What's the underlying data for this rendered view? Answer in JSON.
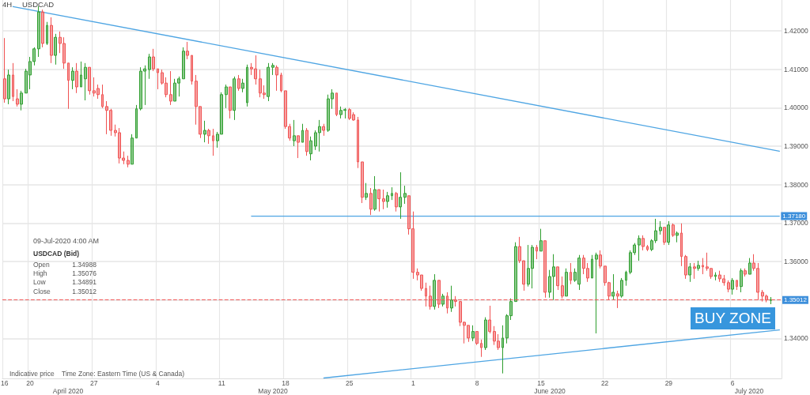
{
  "chart_data": {
    "type": "candlestick",
    "title": "4H",
    "subtitle": "USDCAD",
    "categories": [
      "16",
      null,
      null,
      null,
      null,
      null,
      "20",
      null,
      null,
      null,
      null,
      null,
      null,
      null,
      null,
      null,
      null,
      null,
      null,
      null,
      null,
      "27",
      null,
      null,
      null,
      null,
      null,
      null,
      null,
      null,
      null,
      null,
      null,
      null,
      null,
      null,
      "4",
      null,
      null,
      null,
      null,
      null,
      null,
      null,
      null,
      null,
      null,
      null,
      null,
      null,
      null,
      "11",
      null,
      null,
      null,
      null,
      null,
      null,
      null,
      null,
      null,
      null,
      null,
      null,
      null,
      null,
      "18",
      null,
      null,
      null,
      null,
      null,
      null,
      null,
      null,
      null,
      null,
      null,
      null,
      null,
      null,
      "25",
      null,
      null,
      null,
      null,
      null,
      null,
      null,
      null,
      null,
      null,
      null,
      null,
      null,
      null,
      "1",
      null,
      null,
      null,
      null,
      null,
      null,
      null,
      null,
      null,
      null,
      null,
      null,
      null,
      null,
      "8",
      null,
      null,
      null,
      null,
      null,
      null,
      null,
      null,
      null,
      null,
      null,
      null,
      null,
      null,
      "15",
      null,
      null,
      null,
      null,
      null,
      null,
      null,
      null,
      null,
      null,
      null,
      null,
      null,
      null,
      "22",
      null,
      null,
      null,
      null,
      null,
      null,
      null,
      null,
      null,
      null,
      null,
      null,
      null,
      null,
      "29",
      null,
      null,
      null,
      null,
      null,
      null,
      null,
      null,
      null,
      null,
      null,
      null,
      null,
      null,
      "6",
      null,
      null,
      null,
      null,
      null,
      null,
      null,
      null,
      null,
      null,
      null
    ],
    "ohlc": [
      [
        1.4075,
        1.4181,
        1.4013,
        1.4023
      ],
      [
        1.4023,
        1.4099,
        1.4009,
        1.4085
      ],
      [
        1.4085,
        1.4116,
        1.4017,
        1.4029
      ],
      [
        1.4023,
        1.4048,
        1.4003,
        1.4009
      ],
      [
        1.4009,
        1.4044,
        1.3993,
        1.4038
      ],
      [
        1.4038,
        1.4101,
        1.4038,
        1.4095
      ],
      [
        1.4085,
        1.4132,
        1.4048,
        1.412
      ],
      [
        1.412,
        1.4157,
        1.411,
        1.4153
      ],
      [
        1.4153,
        1.4264,
        1.4132,
        1.4249
      ],
      [
        1.4249,
        1.4255,
        1.4157,
        1.4167
      ],
      [
        1.4167,
        1.4223,
        1.4163,
        1.4214
      ],
      [
        1.4214,
        1.4235,
        1.4116,
        1.4136
      ],
      [
        1.4136,
        1.4192,
        1.4112,
        1.4183
      ],
      [
        1.4183,
        1.4198,
        1.4142,
        1.4167
      ],
      [
        1.4167,
        1.4183,
        1.4101,
        1.4116
      ],
      [
        1.4116,
        1.4116,
        1.3997,
        1.4071
      ],
      [
        1.4071,
        1.4105,
        1.4048,
        1.4095
      ],
      [
        1.4095,
        1.4116,
        1.4038,
        1.4054
      ],
      [
        1.4054,
        1.412,
        1.4054,
        1.4085
      ],
      [
        1.4075,
        1.4116,
        1.4019,
        1.4105
      ],
      [
        1.4105,
        1.4105,
        1.4034,
        1.4044
      ],
      [
        1.4044,
        1.4079,
        1.4029,
        1.4038
      ],
      [
        1.405,
        1.406,
        1.4023,
        1.4034
      ],
      [
        1.4034,
        1.406,
        1.3999,
        1.4003
      ],
      [
        1.4003,
        1.4017,
        1.3931,
        1.3993
      ],
      [
        1.3993,
        1.3997,
        1.3927,
        1.3941
      ],
      [
        1.3941,
        1.3956,
        1.3925,
        1.3935
      ],
      [
        1.3935,
        1.3947,
        1.3855,
        1.3869
      ],
      [
        1.3869,
        1.3886,
        1.3853,
        1.3863
      ],
      [
        1.3863,
        1.3875,
        1.3845,
        1.3853
      ],
      [
        1.3853,
        1.3931,
        1.3853,
        1.3921
      ],
      [
        1.3921,
        1.4007,
        1.3921,
        1.3997
      ],
      [
        1.3997,
        1.4105,
        1.3993,
        1.4095
      ],
      [
        1.4095,
        1.411,
        1.4007,
        1.4101
      ],
      [
        1.4099,
        1.414,
        1.4075,
        1.4132
      ],
      [
        1.4132,
        1.4153,
        1.4095,
        1.4101
      ],
      [
        1.4101,
        1.4101,
        1.4048,
        1.4091
      ],
      [
        1.4091,
        1.4099,
        1.406,
        1.4064
      ],
      [
        1.4064,
        1.4079,
        1.4027,
        1.4034
      ],
      [
        1.4034,
        1.4095,
        1.4007,
        1.4017
      ],
      [
        1.4017,
        1.4075,
        1.4017,
        1.4064
      ],
      [
        1.4064,
        1.4081,
        1.4029,
        1.4075
      ],
      [
        1.4075,
        1.4157,
        1.4075,
        1.4147
      ],
      [
        1.4147,
        1.4171,
        1.4126,
        1.4136
      ],
      [
        1.4136,
        1.4136,
        1.406,
        1.4069
      ],
      [
        1.4069,
        1.4085,
        1.3956,
        1.4003
      ],
      [
        1.4003,
        1.4003,
        1.3921,
        1.3931
      ],
      [
        1.3931,
        1.3966,
        1.391,
        1.3941
      ],
      [
        1.3941,
        1.3945,
        1.3906,
        1.3927
      ],
      [
        1.3927,
        1.3945,
        1.3875,
        1.3914
      ],
      [
        1.3914,
        1.3937,
        1.3896,
        1.3931
      ],
      [
        1.3931,
        1.404,
        1.3931,
        1.4034
      ],
      [
        1.4034,
        1.406,
        1.3999,
        1.4054
      ],
      [
        1.4054,
        1.4054,
        1.3972,
        1.3993
      ],
      [
        1.3993,
        1.4081,
        1.3968,
        1.4075
      ],
      [
        1.4075,
        1.4085,
        1.4044,
        1.405
      ],
      [
        1.405,
        1.4075,
        1.404,
        1.4064
      ],
      [
        1.4013,
        1.4112,
        1.4003,
        1.4105
      ],
      [
        1.4105,
        1.4116,
        1.4085,
        1.4101
      ],
      [
        1.4101,
        1.4136,
        1.406,
        1.4075
      ],
      [
        1.4075,
        1.4099,
        1.4027,
        1.4038
      ],
      [
        1.4038,
        1.4058,
        1.4023,
        1.4034
      ],
      [
        1.4029,
        1.4116,
        1.4017,
        1.4105
      ],
      [
        1.4105,
        1.4116,
        1.4085,
        1.411
      ],
      [
        1.4105,
        1.411,
        1.4044,
        1.4085
      ],
      [
        1.4085,
        1.4091,
        1.404,
        1.4044
      ],
      [
        1.4044,
        1.4044,
        1.3945,
        1.3951
      ],
      [
        1.3951,
        1.3958,
        1.3914,
        1.3921
      ],
      [
        1.3914,
        1.3968,
        1.39,
        1.3927
      ],
      [
        1.3927,
        1.3927,
        1.3869,
        1.391
      ],
      [
        1.391,
        1.3958,
        1.391,
        1.3941
      ],
      [
        1.3941,
        1.3947,
        1.3875,
        1.3886
      ],
      [
        1.388,
        1.3925,
        1.3863,
        1.3914
      ],
      [
        1.39,
        1.3941,
        1.389,
        1.3935
      ],
      [
        1.3935,
        1.3968,
        1.3886,
        1.3951
      ],
      [
        1.3951,
        1.3958,
        1.3927,
        1.3941
      ],
      [
        1.3941,
        1.4034,
        1.3937,
        1.4023
      ],
      [
        1.4023,
        1.4048,
        1.3997,
        1.4038
      ],
      [
        1.4038,
        1.4038,
        1.3978,
        1.3982
      ],
      [
        1.3982,
        1.4003,
        1.3972,
        1.3993
      ],
      [
        1.3993,
        1.3999,
        1.3972,
        1.3995
      ],
      [
        1.3995,
        1.3999,
        1.3968,
        1.3972
      ],
      [
        1.3982,
        1.3988,
        1.3966,
        1.3968
      ],
      [
        1.3968,
        1.3976,
        1.3843,
        1.3859
      ],
      [
        1.3859,
        1.3859,
        1.3752,
        1.3767
      ],
      [
        1.3767,
        1.3804,
        1.376,
        1.3777
      ],
      [
        1.3777,
        1.3791,
        1.3721,
        1.3736
      ],
      [
        1.3736,
        1.3822,
        1.3732,
        1.3787
      ],
      [
        1.3787,
        1.3787,
        1.373,
        1.3763
      ],
      [
        1.3763,
        1.3787,
        1.3736,
        1.3756
      ],
      [
        1.3756,
        1.3781,
        1.374,
        1.3771
      ],
      [
        1.3771,
        1.3793,
        1.376,
        1.3777
      ],
      [
        1.3777,
        1.3781,
        1.373,
        1.3742
      ],
      [
        1.3742,
        1.3832,
        1.3711,
        1.3767
      ],
      [
        1.3767,
        1.3797,
        1.375,
        1.3777
      ],
      [
        1.3771,
        1.3771,
        1.367,
        1.3685
      ],
      [
        1.3685,
        1.373,
        1.3555,
        1.3572
      ],
      [
        1.3572,
        1.3582,
        1.3551,
        1.3565
      ],
      [
        1.3565,
        1.3565,
        1.3524,
        1.353
      ],
      [
        1.353,
        1.3545,
        1.3483,
        1.351
      ],
      [
        1.351,
        1.3537,
        1.3475,
        1.3483
      ],
      [
        1.3483,
        1.3567,
        1.3475,
        1.3551
      ],
      [
        1.3551,
        1.3551,
        1.3479,
        1.3489
      ],
      [
        1.3489,
        1.3516,
        1.3483,
        1.351
      ],
      [
        1.351,
        1.352,
        1.3465,
        1.3479
      ],
      [
        1.3479,
        1.3537,
        1.3469,
        1.35
      ],
      [
        1.35,
        1.351,
        1.3483,
        1.3496
      ],
      [
        1.3496,
        1.3496,
        1.3432,
        1.3442
      ],
      [
        1.3442,
        1.3444,
        1.3387,
        1.3434
      ],
      [
        1.3434,
        1.3434,
        1.3391,
        1.3401
      ],
      [
        1.3401,
        1.3434,
        1.3393,
        1.3418
      ],
      [
        1.3418,
        1.3418,
        1.3383,
        1.3387
      ],
      [
        1.3387,
        1.3397,
        1.3352,
        1.3376
      ],
      [
        1.3376,
        1.3455,
        1.337,
        1.3448
      ],
      [
        1.3448,
        1.3485,
        1.3413,
        1.3418
      ],
      [
        1.3418,
        1.3432,
        1.3383,
        1.3393
      ],
      [
        1.3393,
        1.3411,
        1.337,
        1.3376
      ],
      [
        1.3376,
        1.3434,
        1.3309,
        1.3401
      ],
      [
        1.3401,
        1.3463,
        1.3387,
        1.3459
      ],
      [
        1.3459,
        1.3504,
        1.3448,
        1.3496
      ],
      [
        1.3496,
        1.365,
        1.3496,
        1.3639
      ],
      [
        1.3639,
        1.3664,
        1.3596,
        1.3602
      ],
      [
        1.3602,
        1.3602,
        1.3524,
        1.3541
      ],
      [
        1.3541,
        1.3643,
        1.3535,
        1.3582
      ],
      [
        1.3582,
        1.3643,
        1.353,
        1.3637
      ],
      [
        1.3637,
        1.3643,
        1.3606,
        1.3627
      ],
      [
        1.3627,
        1.3685,
        1.3627,
        1.3654
      ],
      [
        1.3654,
        1.3654,
        1.3506,
        1.352
      ],
      [
        1.352,
        1.3578,
        1.3506,
        1.3561
      ],
      [
        1.3561,
        1.3619,
        1.35,
        1.3586
      ],
      [
        1.3586,
        1.3586,
        1.3526,
        1.3537
      ],
      [
        1.3537,
        1.3561,
        1.3504,
        1.351
      ],
      [
        1.351,
        1.3582,
        1.351,
        1.3572
      ],
      [
        1.3572,
        1.3596,
        1.3541,
        1.3551
      ],
      [
        1.3551,
        1.3582,
        1.3547,
        1.3572
      ],
      [
        1.3541,
        1.3617,
        1.3526,
        1.3609
      ],
      [
        1.3609,
        1.3617,
        1.3567,
        1.3582
      ],
      [
        1.3582,
        1.3596,
        1.3547,
        1.3557
      ],
      [
        1.3557,
        1.3617,
        1.3557,
        1.3606
      ],
      [
        1.3606,
        1.3623,
        1.3413,
        1.3617
      ],
      [
        1.3617,
        1.3629,
        1.3582,
        1.3588
      ],
      [
        1.3588,
        1.3588,
        1.3537,
        1.3545
      ],
      [
        1.3545,
        1.3547,
        1.35,
        1.351
      ],
      [
        1.351,
        1.3567,
        1.35,
        1.352
      ],
      [
        1.3516,
        1.3524,
        1.3479,
        1.351
      ],
      [
        1.351,
        1.3557,
        1.3506,
        1.3551
      ],
      [
        1.3551,
        1.3576,
        1.3537,
        1.3572
      ],
      [
        1.3572,
        1.3629,
        1.3567,
        1.3623
      ],
      [
        1.3623,
        1.3648,
        1.3617,
        1.3643
      ],
      [
        1.3643,
        1.3668,
        1.3602,
        1.366
      ],
      [
        1.366,
        1.3668,
        1.3629,
        1.3639
      ],
      [
        1.3639,
        1.3643,
        1.3627,
        1.3631
      ],
      [
        1.3631,
        1.3658,
        1.3627,
        1.3654
      ],
      [
        1.3654,
        1.3711,
        1.3648,
        1.368
      ],
      [
        1.368,
        1.3705,
        1.367,
        1.3689
      ],
      [
        1.3689,
        1.3689,
        1.3643,
        1.365
      ],
      [
        1.365,
        1.3705,
        1.3643,
        1.3695
      ],
      [
        1.3695,
        1.3699,
        1.3664,
        1.3668
      ],
      [
        1.3668,
        1.3678,
        1.365,
        1.3674
      ],
      [
        1.3674,
        1.3699,
        1.3588,
        1.3613
      ],
      [
        1.3613,
        1.3617,
        1.3555,
        1.3565
      ],
      [
        1.3565,
        1.3596,
        1.3547,
        1.3586
      ],
      [
        1.3586,
        1.3596,
        1.3555,
        1.3582
      ],
      [
        1.3582,
        1.3602,
        1.3576,
        1.359
      ],
      [
        1.359,
        1.3609,
        1.3567,
        1.3586
      ],
      [
        1.3586,
        1.3623,
        1.3576,
        1.3582
      ],
      [
        1.3582,
        1.3582,
        1.3555,
        1.3561
      ],
      [
        1.3561,
        1.3572,
        1.3551,
        1.3565
      ],
      [
        1.3565,
        1.3576,
        1.3547,
        1.3555
      ],
      [
        1.3555,
        1.3565,
        1.3537,
        1.3545
      ],
      [
        1.3545,
        1.3551,
        1.352,
        1.3528
      ],
      [
        1.3528,
        1.3557,
        1.3514,
        1.3551
      ],
      [
        1.3551,
        1.3551,
        1.3526,
        1.3535
      ],
      [
        1.3535,
        1.3582,
        1.352,
        1.3576
      ],
      [
        1.3576,
        1.3582,
        1.3561,
        1.3567
      ],
      [
        1.3567,
        1.3609,
        1.3567,
        1.3596
      ],
      [
        1.3596,
        1.3619,
        1.3576,
        1.3582
      ],
      [
        1.3582,
        1.3596,
        1.35,
        1.352
      ],
      [
        1.352,
        1.3526,
        1.3496,
        1.351
      ],
      [
        1.351,
        1.3514,
        1.3494,
        1.35
      ],
      [
        1.34988,
        1.35076,
        1.34891,
        1.35012
      ],
      null,
      null
    ],
    "colors": [
      "#f05252",
      "#2e9e2e",
      "#f05252",
      "#f05252",
      "#2e9e2e",
      "#2e9e2e",
      "#2e9e2e",
      "#2e9e2e",
      "#2e9e2e",
      "#f05252",
      "#2e9e2e",
      "#f05252",
      "#2e9e2e",
      "#f05252",
      "#f05252",
      "#f05252",
      "#2e9e2e",
      "#f05252",
      "#2e9e2e",
      "#2e9e2e",
      "#f05252",
      "#f05252",
      "#f05252",
      "#f05252",
      "#f05252",
      "#f05252",
      "#f05252",
      "#f05252",
      "#f05252",
      "#f05252",
      "#2e9e2e",
      "#2e9e2e",
      "#2e9e2e",
      "#2e9e2e",
      "#2e9e2e",
      "#f05252",
      "#f05252",
      "#f05252",
      "#f05252",
      "#f05252",
      "#2e9e2e",
      "#2e9e2e",
      "#2e9e2e",
      "#f05252",
      "#f05252",
      "#f05252",
      "#f05252",
      "#2e9e2e",
      "#f05252",
      "#f05252",
      "#2e9e2e",
      "#2e9e2e",
      "#2e9e2e",
      "#f05252",
      "#2e9e2e",
      "#f05252",
      "#2e9e2e",
      "#2e9e2e",
      "#f05252",
      "#f05252",
      "#f05252",
      "#f05252",
      "#2e9e2e",
      "#2e9e2e",
      "#f05252",
      "#f05252",
      "#f05252",
      "#f05252",
      "#2e9e2e",
      "#f05252",
      "#2e9e2e",
      "#f05252",
      "#2e9e2e",
      "#2e9e2e",
      "#2e9e2e",
      "#f05252",
      "#2e9e2e",
      "#2e9e2e",
      "#f05252",
      "#2e9e2e",
      "#2e9e2e",
      "#f05252",
      "#f05252",
      "#f05252",
      "#f05252",
      "#2e9e2e",
      "#f05252",
      "#2e9e2e",
      "#f05252",
      "#f05252",
      "#2e9e2e",
      "#2e9e2e",
      "#f05252",
      "#2e9e2e",
      "#2e9e2e",
      "#f05252",
      "#f05252",
      "#f05252",
      "#f05252",
      "#f05252",
      "#f05252",
      "#2e9e2e",
      "#f05252",
      "#2e9e2e",
      "#f05252",
      "#2e9e2e",
      "#f05252",
      "#f05252",
      "#f05252",
      "#f05252",
      "#2e9e2e",
      "#f05252",
      "#f05252",
      "#2e9e2e",
      "#f05252",
      "#f05252",
      "#f05252",
      "#2e9e2e",
      "#2e9e2e",
      "#2e9e2e",
      "#2e9e2e",
      "#f05252",
      "#f05252",
      "#2e9e2e",
      "#2e9e2e",
      "#f05252",
      "#2e9e2e",
      "#f05252",
      "#2e9e2e",
      "#2e9e2e",
      "#f05252",
      "#f05252",
      "#2e9e2e",
      "#f05252",
      "#2e9e2e",
      "#2e9e2e",
      "#f05252",
      "#f05252",
      "#2e9e2e",
      "#2e9e2e",
      "#f05252",
      "#f05252",
      "#f05252",
      "#2e9e2e",
      "#f05252",
      "#2e9e2e",
      "#2e9e2e",
      "#2e9e2e",
      "#2e9e2e",
      "#2e9e2e",
      "#f05252",
      "#f05252",
      "#2e9e2e",
      "#2e9e2e",
      "#2e9e2e",
      "#f05252",
      "#2e9e2e",
      "#f05252",
      "#2e9e2e",
      "#f05252",
      "#f05252",
      "#2e9e2e",
      "#f05252",
      "#2e9e2e",
      "#f05252",
      "#f05252",
      "#f05252",
      "#2e9e2e",
      "#f05252",
      "#f05252",
      "#f05252",
      "#2e9e2e",
      "#f05252",
      "#2e9e2e",
      "#f05252",
      "#2e9e2e",
      "#f05252",
      "#f05252",
      "#f05252",
      "#f05252",
      "#2e9e2e",
      null,
      null
    ],
    "series": [
      {
        "type": "line",
        "color": "#4ea5e3",
        "values": [
          null,
          null,
          1.4263,
          null,
          null,
          null,
          null,
          null,
          null,
          null,
          null,
          null,
          null,
          null,
          null,
          null,
          null,
          null,
          null,
          null,
          null,
          null,
          null,
          null,
          null,
          null,
          null,
          null,
          null,
          null,
          null,
          null,
          null,
          null,
          null,
          null,
          null,
          null,
          null,
          null,
          null,
          null,
          null,
          null,
          null,
          null,
          null,
          null,
          null,
          null,
          null,
          null,
          null,
          null,
          null,
          null,
          null,
          null,
          null,
          null,
          null,
          null,
          null,
          null,
          null,
          null,
          null,
          null,
          null,
          null,
          null,
          null,
          null,
          null,
          null,
          null,
          null,
          null,
          null,
          null,
          null,
          null,
          null,
          null,
          null,
          null,
          null,
          null,
          null,
          null,
          null,
          null,
          null,
          null,
          null,
          null,
          null,
          null,
          null,
          null,
          null,
          null,
          null,
          null,
          null,
          null,
          null,
          null,
          null,
          null,
          null,
          null,
          null,
          null,
          null,
          null,
          null,
          null,
          null,
          null,
          null,
          null,
          null,
          null,
          null,
          null,
          null,
          null,
          null,
          null,
          null,
          null,
          null,
          null,
          null,
          null,
          null,
          null,
          null,
          null,
          null,
          null,
          null,
          null,
          null,
          null,
          null,
          null,
          null,
          null,
          null,
          null,
          null,
          null,
          null,
          null,
          null,
          null,
          null,
          null,
          null,
          null,
          null,
          null,
          null,
          null,
          null,
          null,
          null,
          null,
          null,
          null,
          null,
          null,
          null,
          null,
          null,
          null,
          null,
          null,
          null,
          null,
          1.3887
        ]
      },
      {
        "type": "line",
        "color": "#4ea5e3",
        "values": [
          null,
          null,
          null,
          null,
          null,
          null,
          null,
          null,
          null,
          null,
          null,
          null,
          null,
          null,
          null,
          null,
          null,
          null,
          null,
          null,
          null,
          null,
          null,
          null,
          null,
          null,
          null,
          null,
          null,
          null,
          null,
          null,
          null,
          null,
          null,
          null,
          null,
          null,
          null,
          null,
          null,
          null,
          null,
          null,
          null,
          null,
          null,
          null,
          null,
          null,
          null,
          null,
          null,
          null,
          null,
          null,
          null,
          null,
          1.3718,
          null,
          null,
          null,
          null,
          null,
          null,
          null,
          null,
          null,
          null,
          null,
          null,
          null,
          null,
          null,
          null,
          null,
          null,
          null,
          null,
          null,
          null,
          null,
          null,
          null,
          null,
          null,
          null,
          null,
          null,
          null,
          null,
          null,
          null,
          null,
          null,
          null,
          null,
          null,
          null,
          null,
          null,
          null,
          null,
          null,
          null,
          null,
          null,
          null,
          null,
          null,
          null,
          null,
          null,
          null,
          null,
          null,
          null,
          null,
          null,
          null,
          null,
          null,
          null,
          null,
          null,
          null,
          null,
          null,
          null,
          null,
          null,
          null,
          null,
          null,
          null,
          null,
          null,
          null,
          null,
          null,
          null,
          null,
          null,
          null,
          null,
          null,
          null,
          null,
          null,
          null,
          null,
          null,
          null,
          null,
          null,
          null,
          null,
          null,
          null,
          null,
          null,
          null,
          null,
          null,
          null,
          null,
          null,
          null,
          null,
          null,
          null,
          null,
          null,
          null,
          null,
          null,
          null,
          null,
          null,
          null,
          null,
          null,
          1.3718
        ],
        "value_labels": [
          null,
          null,
          null,
          null,
          null,
          null,
          null,
          null,
          null,
          null,
          null,
          null,
          null,
          null,
          null,
          null,
          null,
          null,
          null,
          null,
          null,
          null,
          null,
          null,
          null,
          null,
          null,
          null,
          null,
          null,
          null,
          null,
          null,
          null,
          null,
          null,
          null,
          null,
          null,
          null,
          null,
          null,
          null,
          null,
          null,
          null,
          null,
          null,
          null,
          null,
          null,
          null,
          null,
          null,
          null,
          null,
          null,
          null,
          null,
          null,
          null,
          null,
          null,
          null,
          null,
          null,
          null,
          null,
          null,
          null,
          null,
          null,
          null,
          null,
          null,
          null,
          null,
          null,
          null,
          null,
          null,
          null,
          null,
          null,
          null,
          null,
          null,
          null,
          null,
          null,
          null,
          null,
          null,
          null,
          null,
          null,
          null,
          null,
          null,
          null,
          null,
          null,
          null,
          null,
          null,
          null,
          null,
          null,
          null,
          null,
          null,
          null,
          null,
          null,
          null,
          null,
          null,
          null,
          null,
          null,
          null,
          null,
          null,
          null,
          null,
          null,
          null,
          null,
          null,
          null,
          null,
          null,
          null,
          null,
          null,
          null,
          null,
          null,
          null,
          null,
          null,
          null,
          null,
          null,
          null,
          null,
          null,
          null,
          null,
          null,
          null,
          null,
          null,
          null,
          null,
          null,
          null,
          null,
          null,
          null,
          null,
          null,
          null,
          null,
          null,
          null,
          null,
          null,
          null,
          null,
          null,
          null,
          null,
          null,
          null,
          null,
          null,
          null,
          null,
          null,
          null,
          null,
          "1.37180"
        ]
      },
      {
        "type": "line",
        "color": "#4ea5e3",
        "values": [
          null,
          null,
          null,
          null,
          null,
          null,
          null,
          null,
          null,
          null,
          null,
          null,
          null,
          null,
          null,
          null,
          null,
          null,
          null,
          null,
          null,
          null,
          null,
          null,
          null,
          null,
          null,
          null,
          null,
          null,
          null,
          null,
          null,
          null,
          null,
          null,
          null,
          null,
          null,
          null,
          null,
          null,
          null,
          null,
          null,
          null,
          null,
          null,
          null,
          null,
          null,
          null,
          null,
          null,
          null,
          null,
          null,
          null,
          null,
          null,
          null,
          null,
          null,
          null,
          null,
          null,
          null,
          null,
          null,
          null,
          null,
          null,
          null,
          null,
          null,
          1.3297,
          null,
          null,
          null,
          null,
          null,
          null,
          null,
          null,
          null,
          null,
          null,
          null,
          null,
          null,
          null,
          null,
          null,
          null,
          null,
          null,
          null,
          null,
          null,
          null,
          null,
          null,
          null,
          null,
          null,
          null,
          null,
          null,
          null,
          null,
          null,
          null,
          null,
          null,
          null,
          null,
          null,
          null,
          null,
          null,
          null,
          null,
          null,
          null,
          null,
          null,
          null,
          null,
          null,
          null,
          null,
          null,
          null,
          null,
          null,
          null,
          null,
          null,
          null,
          null,
          null,
          null,
          null,
          null,
          null,
          null,
          null,
          null,
          null,
          null,
          null,
          null,
          null,
          null,
          null,
          null,
          null,
          null,
          null,
          null,
          null,
          null,
          null,
          null,
          null,
          null,
          null,
          null,
          null,
          null,
          null,
          null,
          null,
          null,
          null,
          null,
          null,
          null,
          null,
          null,
          null,
          null,
          1.3422
        ]
      }
    ],
    "ylim": [
      1.3296,
      1.428
    ],
    "yticks": [
      {
        "value": 1.34,
        "label": "1.34000"
      },
      {
        "value": 1.35,
        "label": null
      },
      {
        "value": 1.36,
        "label": "1.36000"
      },
      {
        "value": 1.37,
        "label": "1.37000"
      },
      {
        "value": 1.38,
        "label": "1.38000"
      },
      {
        "value": 1.39,
        "label": "1.39000"
      },
      {
        "value": 1.4,
        "label": "1.40000"
      },
      {
        "value": 1.41,
        "label": "1.41000"
      },
      {
        "value": 1.42,
        "label": "1.42000"
      }
    ],
    "grid": true,
    "ref_lines": [
      {
        "axis": "y",
        "value": 1.35012,
        "label": "1.35012",
        "color": "#f25c5c",
        "line_style": "dashed"
      }
    ],
    "annotations": [
      "Indicative price",
      "Time Zone: Eastern Time (US & Canada)",
      "09-Jul-2020 4:00 AM",
      "USDCAD (Bid)",
      "Open",
      "1.34988",
      "High",
      "1.35076",
      "Low",
      "1.34891",
      "Close",
      "1.35012",
      "BUY ZONE",
      "April 2020",
      "May 2020",
      "June 2020",
      "July 2020"
    ]
  }
}
